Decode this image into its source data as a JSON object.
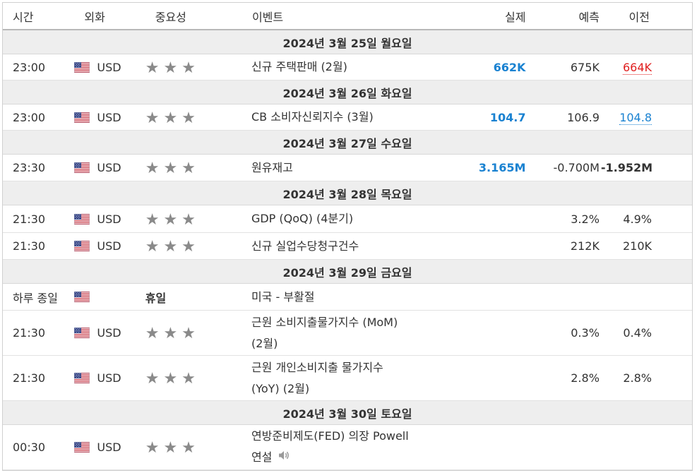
{
  "columns": {
    "time": "시간",
    "currency": "외화",
    "importance": "중요성",
    "event": "이벤트",
    "actual": "실제",
    "forecast": "예측",
    "previous": "이전"
  },
  "stars": "★★★",
  "colors": {
    "actual_blue": "#1a82d1",
    "previous_red": "#e02020",
    "date_bar": "#eeeeee",
    "stars": "#8a8a8a"
  },
  "days": [
    {
      "date": "2024년 3월 25일 월요일",
      "rows": [
        {
          "time": "23:00",
          "currency": "USD",
          "event": "신규 주택판매 (2월)",
          "actual": "662K",
          "forecast": "675K",
          "previous": "664K"
        }
      ]
    },
    {
      "date": "2024년 3월 26일 화요일",
      "rows": [
        {
          "time": "23:00",
          "currency": "USD",
          "event": "CB 소비자신뢰지수 (3월)",
          "actual": "104.7",
          "forecast": "106.9",
          "previous": "104.8"
        }
      ]
    },
    {
      "date": "2024년 3월 27일 수요일",
      "rows": [
        {
          "time": "23:30",
          "currency": "USD",
          "event": "원유재고",
          "actual": "3.165M",
          "forecast": "-0.700M",
          "previous": "-1.952M"
        }
      ]
    },
    {
      "date": "2024년 3월 28일 목요일",
      "rows": [
        {
          "time": "21:30",
          "currency": "USD",
          "event": "GDP (QoQ) (4분기)",
          "actual": "",
          "forecast": "3.2%",
          "previous": "4.9%"
        },
        {
          "time": "21:30",
          "currency": "USD",
          "event": "신규 실업수당청구건수",
          "actual": "",
          "forecast": "212K",
          "previous": "210K"
        }
      ]
    },
    {
      "date": "2024년 3월 29일 금요일",
      "rows": [
        {
          "time": "하루 종일",
          "holiday_label": "휴일",
          "event": "미국 - 부활절"
        },
        {
          "time": "21:30",
          "currency": "USD",
          "event_line1": "근원 소비지출물가지수 (MoM)",
          "event_line2": "(2월)",
          "actual": "",
          "forecast": "0.3%",
          "previous": "0.4%"
        },
        {
          "time": "21:30",
          "currency": "USD",
          "event_line1": "근원 개인소비지출 물가지수",
          "event_line2": "(YoY) (2월)",
          "actual": "",
          "forecast": "2.8%",
          "previous": "2.8%"
        }
      ]
    },
    {
      "date": "2024년 3월 30일 토요일",
      "rows": [
        {
          "time": "00:30",
          "currency": "USD",
          "event_line1": "연방준비제도(FED) 의장 Powell",
          "event_line2": "연설",
          "actual": "",
          "forecast": "",
          "previous": ""
        }
      ]
    }
  ]
}
